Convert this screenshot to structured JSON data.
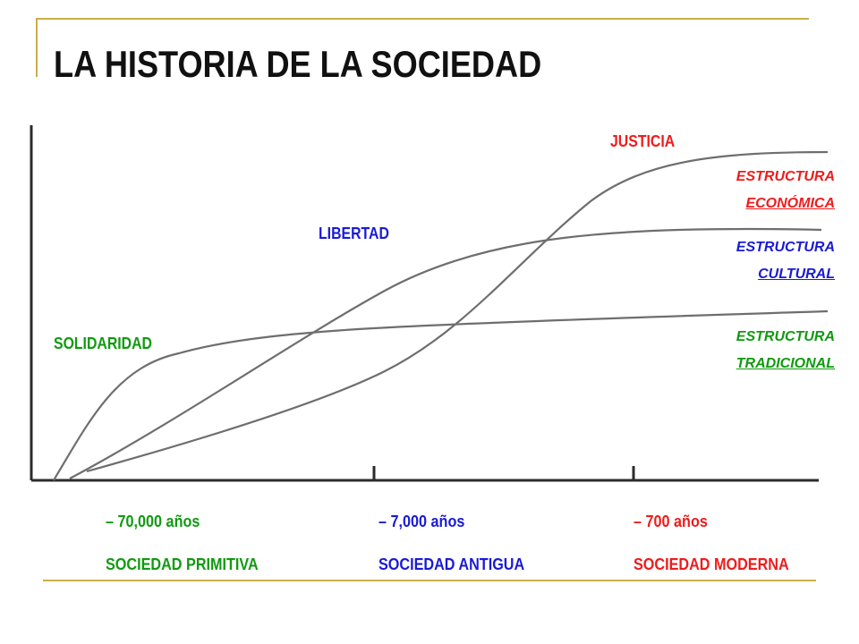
{
  "title": "LA HISTORIA DE LA SOCIEDAD",
  "colors": {
    "red": "#ee1c1c",
    "blue": "#1a1ad6",
    "green": "#109a10",
    "rule": "#c8b04a",
    "curve": "#6e6e6e"
  },
  "values": {
    "justicia": "JUSTICIA",
    "libertad": "LIBERTAD",
    "solidaridad": "SOLIDARIDAD"
  },
  "structures": {
    "economica": {
      "line1": "ESTRUCTURA",
      "line2": "ECONÓMICA"
    },
    "cultural": {
      "line1": "ESTRUCTURA",
      "line2": "CULTURAL"
    },
    "tradicional": {
      "line1": "ESTRUCTURA",
      "line2": "TRADICIONAL"
    }
  },
  "periods": [
    {
      "time": "– 70,000 años",
      "name": "SOCIEDAD PRIMITIVA"
    },
    {
      "time": "– 7,000 años",
      "name": "SOCIEDAD ANTIGUA"
    },
    {
      "time": "– 700 años",
      "name": "SOCIEDAD MODERNA"
    }
  ]
}
